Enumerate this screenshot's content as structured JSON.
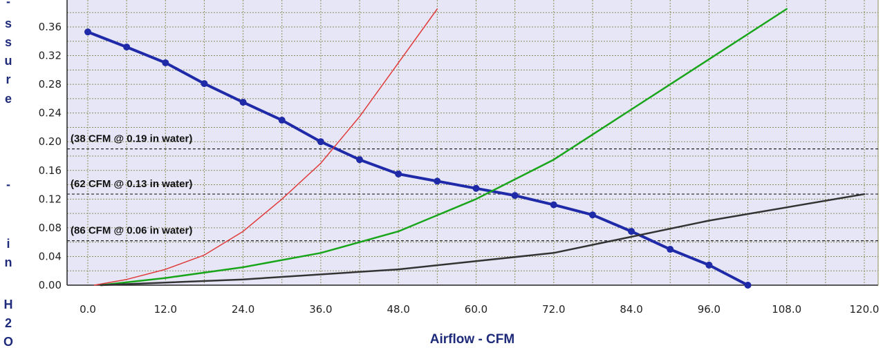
{
  "chart_data": {
    "type": "line",
    "xlabel": "Airflow - CFM",
    "ylabel": "-ssure - in H2O",
    "xlim": [
      0,
      120
    ],
    "ylim": [
      0,
      0.38
    ],
    "x_ticks": [
      "0.0",
      "12.0",
      "24.0",
      "36.0",
      "48.0",
      "60.0",
      "72.0",
      "84.0",
      "96.0",
      "108.0",
      "120.0"
    ],
    "y_ticks": [
      "0.00",
      "0.04",
      "0.08",
      "0.12",
      "0.16",
      "0.20",
      "0.24",
      "0.28",
      "0.32",
      "0.36"
    ],
    "grid": true,
    "background_color": "#e6e6f6",
    "grid_color": "#8c8c5a",
    "series": [
      {
        "color": "#1f2aa8",
        "markers": true,
        "points": [
          [
            0,
            0.353
          ],
          [
            6,
            0.332
          ],
          [
            12,
            0.31
          ],
          [
            18,
            0.281
          ],
          [
            24,
            0.255
          ],
          [
            30,
            0.23
          ],
          [
            36,
            0.2
          ],
          [
            42,
            0.175
          ],
          [
            48,
            0.155
          ],
          [
            54,
            0.145
          ],
          [
            60,
            0.135
          ],
          [
            66,
            0.125
          ],
          [
            72,
            0.112
          ],
          [
            78,
            0.098
          ],
          [
            84,
            0.075
          ],
          [
            90,
            0.05
          ],
          [
            96,
            0.028
          ],
          [
            102,
            0.0
          ]
        ]
      },
      {
        "color": "#e03a3a",
        "markers": false,
        "points": [
          [
            1,
            0.0
          ],
          [
            6,
            0.008
          ],
          [
            12,
            0.022
          ],
          [
            18,
            0.042
          ],
          [
            24,
            0.075
          ],
          [
            30,
            0.12
          ],
          [
            36,
            0.17
          ],
          [
            42,
            0.235
          ],
          [
            48,
            0.31
          ],
          [
            54,
            0.385
          ]
        ]
      },
      {
        "color": "#19a519",
        "markers": false,
        "points": [
          [
            2,
            0.0
          ],
          [
            12,
            0.01
          ],
          [
            24,
            0.025
          ],
          [
            36,
            0.045
          ],
          [
            48,
            0.075
          ],
          [
            60,
            0.12
          ],
          [
            72,
            0.175
          ],
          [
            84,
            0.245
          ],
          [
            96,
            0.315
          ],
          [
            108,
            0.385
          ]
        ]
      },
      {
        "color": "#333333",
        "markers": false,
        "points": [
          [
            2,
            0.0
          ],
          [
            24,
            0.008
          ],
          [
            48,
            0.022
          ],
          [
            72,
            0.045
          ],
          [
            96,
            0.09
          ],
          [
            120,
            0.127
          ]
        ]
      }
    ],
    "reference_lines": [
      {
        "y": 0.19,
        "label": "(38 CFM @ 0.19 in water)"
      },
      {
        "y": 0.127,
        "label": "(62 CFM @ 0.13 in water)"
      },
      {
        "y": 0.062,
        "label": "(86 CFM @ 0.06 in water)"
      }
    ]
  }
}
